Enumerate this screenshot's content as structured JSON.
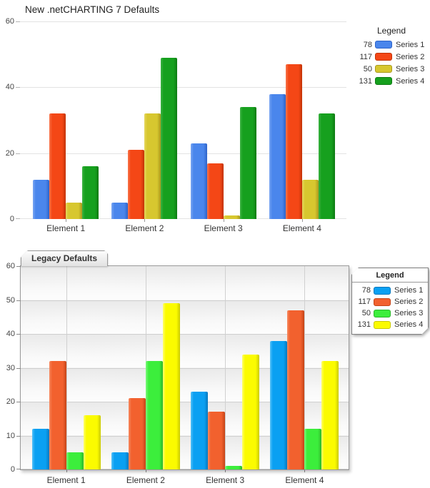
{
  "page": {
    "background": "#ffffff"
  },
  "chart_data": [
    {
      "type": "bar",
      "title": "New .netCHARTING 7 Defaults",
      "legend_title": "Legend",
      "legend_position": "right",
      "categories": [
        "Element 1",
        "Element 2",
        "Element 3",
        "Element 4"
      ],
      "series": [
        {
          "name": "Series 1",
          "legend_value": "78",
          "color": "#4a86ec",
          "color_light": "#7aa6f2",
          "color_dark": "#2d63c8",
          "values": [
            12,
            5,
            23,
            38
          ]
        },
        {
          "name": "Series 2",
          "legend_value": "117",
          "color": "#f44716",
          "color_light": "#f8764c",
          "color_dark": "#c23305",
          "values": [
            32,
            21,
            17,
            47
          ]
        },
        {
          "name": "Series 3",
          "legend_value": "50",
          "color": "#d7c72f",
          "color_light": "#e6d75e",
          "color_dark": "#a8991d",
          "values": [
            5,
            32,
            1,
            12
          ]
        },
        {
          "name": "Series 4",
          "legend_value": "131",
          "color": "#16a01e",
          "color_light": "#3cb242",
          "color_dark": "#0d7a12",
          "values": [
            16,
            49,
            34,
            32
          ]
        }
      ],
      "xlabel": "",
      "ylabel": "",
      "ylim": [
        0,
        60
      ],
      "ytick_step": 20,
      "grid": "horizontal",
      "plot_background": "#ffffff"
    },
    {
      "type": "bar",
      "title": "Legacy Defaults",
      "legend_title": "Legend",
      "legend_position": "right",
      "categories": [
        "Element 1",
        "Element 2",
        "Element 3",
        "Element 4"
      ],
      "series": [
        {
          "name": "Series 1",
          "legend_value": "78",
          "color": "#0aa0f2",
          "color_light": "#54c1f8",
          "color_dark": "#0778bd",
          "values": [
            12,
            5,
            23,
            38
          ]
        },
        {
          "name": "Series 2",
          "legend_value": "117",
          "color": "#f2612e",
          "color_light": "#f68a60",
          "color_dark": "#c44418",
          "values": [
            32,
            21,
            17,
            47
          ]
        },
        {
          "name": "Series 3",
          "legend_value": "50",
          "color": "#3cee3c",
          "color_light": "#7df87d",
          "color_dark": "#2bb62b",
          "values": [
            5,
            32,
            1,
            12
          ]
        },
        {
          "name": "Series 4",
          "legend_value": "131",
          "color": "#fbfb00",
          "color_light": "#ffff6e",
          "color_dark": "#c9c900",
          "values": [
            16,
            49,
            34,
            32
          ]
        }
      ],
      "xlabel": "",
      "ylabel": "",
      "ylim": [
        0,
        60
      ],
      "ytick_step": 10,
      "grid": "horizontal-and-category",
      "plot_background": "#f2f2f2-banded"
    }
  ]
}
